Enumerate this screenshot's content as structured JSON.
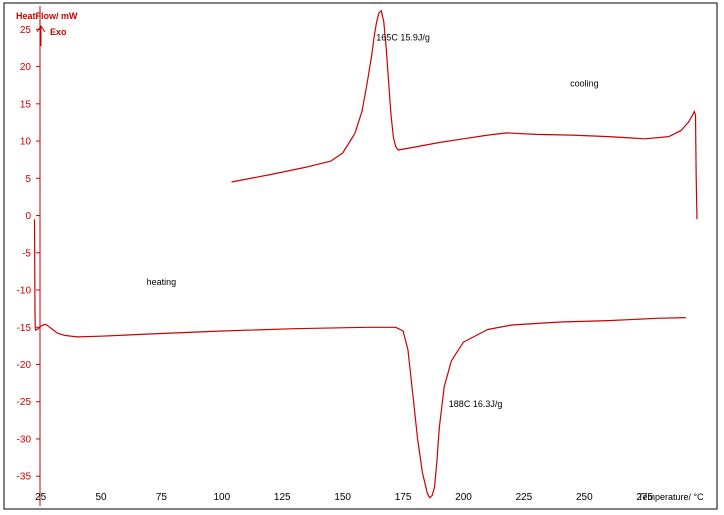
{
  "chart_data": {
    "type": "line",
    "title": "",
    "ylabel": "HeatFlow/ mW",
    "ylabel_exo": "Exo",
    "xlabel": "Temperature/ °C",
    "xlim": [
      14,
      302
    ],
    "ylim": [
      -39,
      28
    ],
    "x_ticks": [
      25,
      50,
      75,
      100,
      125,
      150,
      175,
      200,
      225,
      250,
      275
    ],
    "y_ticks": [
      25,
      20,
      15,
      10,
      5,
      0,
      -5,
      -10,
      -15,
      -20,
      -25,
      -30,
      -35
    ],
    "grid": false,
    "colors": {
      "curve": "#cc0000",
      "axis": "#cc0000",
      "frame": "#000000"
    },
    "annotations": [
      {
        "text": "165C  15.9J/g",
        "x": 175,
        "y": 23.5
      },
      {
        "text": "cooling",
        "x": 250,
        "y": 17.3
      },
      {
        "text": "heating",
        "x": 75,
        "y": -9.3
      },
      {
        "text": "188C  16.3J/g",
        "x": 205,
        "y": -25.7
      }
    ],
    "series": [
      {
        "name": "cooling",
        "x": [
          104,
          120,
          135,
          145,
          150,
          155,
          158,
          160,
          162,
          163,
          164,
          165,
          166,
          167,
          168,
          169,
          170,
          171,
          172,
          173,
          180,
          190,
          200,
          210,
          218,
          230,
          245,
          260,
          275,
          285,
          290,
          293,
          295,
          295.5,
          296,
          296.3,
          296.6
        ],
        "y": [
          4.5,
          5.5,
          6.5,
          7.3,
          8.4,
          11,
          14,
          17.5,
          21.5,
          24,
          25.9,
          27.2,
          27.5,
          26,
          22.5,
          18,
          13.5,
          10.5,
          9.2,
          8.8,
          9.2,
          9.8,
          10.3,
          10.8,
          11.1,
          10.9,
          10.8,
          10.6,
          10.3,
          10.6,
          11.4,
          12.5,
          13.6,
          14,
          13.5,
          5,
          -0.5
        ]
      },
      {
        "name": "heating",
        "x": [
          22.5,
          22.6,
          22.7,
          22.8,
          23,
          24,
          25,
          26,
          27,
          28,
          30,
          32,
          35,
          40,
          50,
          70,
          100,
          130,
          160,
          172,
          175,
          177,
          179,
          181,
          183,
          185,
          186,
          187,
          188,
          189,
          190,
          192,
          195,
          200,
          210,
          220,
          240,
          260,
          280,
          292
        ],
        "y": [
          -0.5,
          -8,
          -13,
          -15.2,
          -15.4,
          -15.2,
          -14.9,
          -14.7,
          -14.6,
          -14.8,
          -15.3,
          -15.8,
          -16.1,
          -16.3,
          -16.2,
          -15.9,
          -15.5,
          -15.2,
          -15,
          -15,
          -15.5,
          -18,
          -24,
          -30,
          -34.5,
          -37.3,
          -37.9,
          -37.6,
          -36.5,
          -33,
          -28.5,
          -23,
          -19.5,
          -17,
          -15.3,
          -14.7,
          -14.3,
          -14.1,
          -13.8,
          -13.7
        ]
      }
    ]
  }
}
